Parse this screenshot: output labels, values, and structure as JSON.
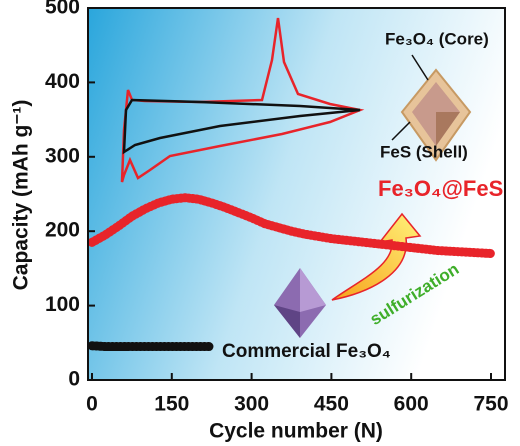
{
  "chart_data": {
    "type": "line",
    "x_label": "Cycle number (N)",
    "y_label": "Capacity (mAh g⁻¹)",
    "xlim": [
      0,
      780
    ],
    "ylim": [
      0,
      500
    ],
    "xticks": [
      0,
      150,
      300,
      450,
      600,
      750
    ],
    "yticks": [
      0,
      100,
      200,
      300,
      400,
      500
    ],
    "series": [
      {
        "name": "Fe₃O₄@FeS",
        "color": "#e8242a",
        "x": [
          0,
          25,
          50,
          75,
          100,
          125,
          150,
          175,
          200,
          225,
          250,
          275,
          300,
          325,
          350,
          375,
          400,
          425,
          450,
          475,
          500,
          525,
          550,
          575,
          600,
          625,
          650,
          675,
          700,
          725,
          750
        ],
        "values": [
          185,
          195,
          207,
          220,
          230,
          238,
          243,
          245,
          243,
          238,
          232,
          225,
          218,
          210,
          205,
          200,
          196,
          193,
          190,
          188,
          186,
          184,
          182,
          180,
          178,
          176,
          174,
          173,
          172,
          171,
          170
        ]
      },
      {
        "name": "Commercial Fe₃O₄",
        "color": "#111111",
        "x": [
          0,
          25,
          50,
          75,
          100,
          125,
          150,
          175,
          200,
          225
        ],
        "values": [
          46,
          45,
          45,
          45,
          45,
          45,
          45,
          45,
          45,
          45
        ]
      }
    ],
    "annotations": [
      "Fe₃O₄  (Core)",
      "FeS  (Shell)",
      "sulfurization"
    ]
  }
}
